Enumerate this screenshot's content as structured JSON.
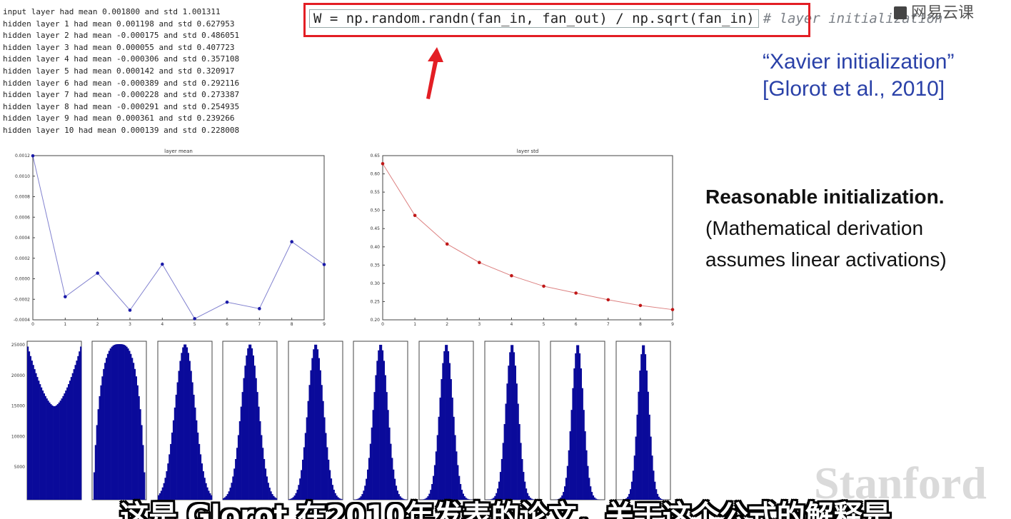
{
  "console": {
    "lines": [
      "input layer had mean 0.001800 and std 1.001311",
      "hidden layer 1 had mean 0.001198 and std 0.627953",
      "hidden layer 2 had mean -0.000175 and std 0.486051",
      "hidden layer 3 had mean 0.000055 and std 0.407723",
      "hidden layer 4 had mean -0.000306 and std 0.357108",
      "hidden layer 5 had mean 0.000142 and std 0.320917",
      "hidden layer 6 had mean -0.000389 and std 0.292116",
      "hidden layer 7 had mean -0.000228 and std 0.273387",
      "hidden layer 8 had mean -0.000291 and std 0.254935",
      "hidden layer 9 had mean 0.000361 and std 0.239266",
      "hidden layer 10 had mean 0.000139 and std 0.228008"
    ]
  },
  "code": {
    "main": "W = np.random.randn(fan_in, fan_out) / np.sqrt(fan_in)",
    "comment": "# layer initialization"
  },
  "watermark_top": "网易云课",
  "xavier": {
    "line1": "“Xavier initialization”",
    "line2": "[Glorot et al., 2010]"
  },
  "reasonable": {
    "line1": "Reasonable initialization.",
    "line2": "(Mathematical derivation",
    "line3": "assumes linear activations)"
  },
  "stanford": "Stanford",
  "subtitle": "这是 Glorot 在2010年发表的论文，关于这个公式的解释是",
  "colors": {
    "mean_line": "#1a1aa8",
    "std_line": "#c01818",
    "hist_fill": "#0a0a9a",
    "highlight": "#e31e24",
    "arrow": "#e31e24"
  },
  "chart_data": [
    {
      "type": "line",
      "title": "layer mean",
      "x": [
        0,
        1,
        2,
        3,
        4,
        5,
        6,
        7,
        8,
        9
      ],
      "y": [
        0.001198,
        -0.000175,
        5.5e-05,
        -0.000306,
        0.000142,
        -0.000389,
        -0.000228,
        -0.000291,
        0.000361,
        0.000139
      ],
      "xlim": [
        0,
        9
      ],
      "ylim": [
        -0.0004,
        0.0012
      ],
      "yticks": [
        "0.0012",
        "0.0010",
        "0.0008",
        "0.0006",
        "0.0004",
        "0.0002",
        "0.0000",
        "-0.0002",
        "-0.0004"
      ],
      "xticks": [
        "0",
        "1",
        "2",
        "3",
        "4",
        "5",
        "6",
        "7",
        "8",
        "9"
      ],
      "grid": false
    },
    {
      "type": "line",
      "title": "layer std",
      "x": [
        0,
        1,
        2,
        3,
        4,
        5,
        6,
        7,
        8,
        9
      ],
      "y": [
        0.627953,
        0.486051,
        0.407723,
        0.357108,
        0.320917,
        0.292116,
        0.273387,
        0.254935,
        0.239266,
        0.228008
      ],
      "xlim": [
        0,
        9
      ],
      "ylim": [
        0.2,
        0.65
      ],
      "yticks": [
        "0.65",
        "0.60",
        "0.55",
        "0.50",
        "0.45",
        "0.40",
        "0.35",
        "0.30",
        "0.25",
        "0.20"
      ],
      "xticks": [
        "0",
        "1",
        "2",
        "3",
        "4",
        "5",
        "6",
        "7",
        "8",
        "9"
      ],
      "grid": false
    },
    {
      "type": "bar",
      "subtype": "histogram-grid",
      "panels": [
        {
          "ymax": 25000,
          "yticks": [
            "25000",
            "20000",
            "15000",
            "10000",
            "5000"
          ],
          "std": 0.628,
          "shape": "u"
        },
        {
          "ymax": 25000,
          "std": 0.486,
          "shape": "flat"
        },
        {
          "ymax": 30000,
          "std": 0.408,
          "shape": "bell"
        },
        {
          "ymax": 40000,
          "std": 0.357,
          "shape": "bell"
        },
        {
          "ymax": 45000,
          "std": 0.321,
          "shape": "bell"
        },
        {
          "ymax": 45000,
          "std": 0.292,
          "shape": "bell"
        },
        {
          "ymax": 50000,
          "std": 0.273,
          "shape": "bell"
        },
        {
          "ymax": 50000,
          "std": 0.255,
          "shape": "bell"
        },
        {
          "ymax": 55000,
          "std": 0.239,
          "shape": "bell"
        },
        {
          "ymax": 60000,
          "std": 0.228,
          "shape": "bell"
        }
      ]
    }
  ]
}
